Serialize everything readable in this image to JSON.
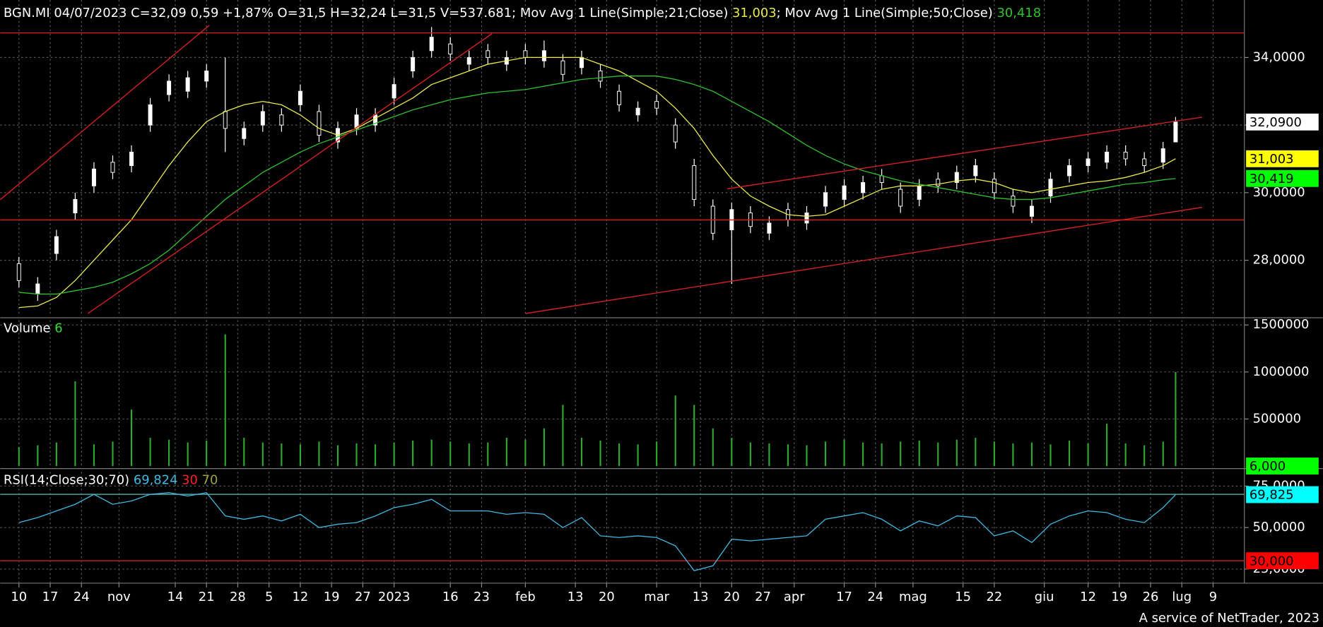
{
  "chart_data": [
    {
      "type": "candlestick",
      "title": "BGN.MI 04/07/2023 C=32,09 0,59 +1,87% O=31,5 H=32,24 L=31,5 V=537.681",
      "x": [
        0,
        3,
        6,
        9,
        12,
        15,
        18,
        21,
        24,
        27,
        30,
        33,
        36,
        39,
        42,
        45,
        48,
        51,
        54,
        57,
        60,
        63,
        66,
        69,
        72,
        75,
        78,
        81,
        84,
        87,
        90,
        93,
        96,
        99,
        102,
        105,
        108,
        111,
        114,
        117,
        120,
        123,
        126,
        129,
        132,
        135,
        138,
        141,
        144,
        147,
        150,
        153,
        156,
        159,
        162,
        165,
        168,
        171,
        174,
        177,
        180,
        183,
        185
      ],
      "open": [
        27.9,
        27.0,
        28.2,
        29.4,
        30.2,
        30.9,
        30.8,
        32.0,
        32.9,
        33.0,
        33.3,
        32.4,
        31.6,
        32.0,
        32.3,
        32.6,
        32.4,
        31.5,
        31.9,
        32.0,
        32.8,
        33.6,
        34.2,
        34.4,
        33.8,
        34.2,
        33.8,
        34.2,
        33.9,
        33.9,
        33.7,
        33.6,
        33.0,
        32.3,
        32.7,
        32.0,
        30.8,
        29.6,
        28.9,
        29.4,
        28.8,
        29.5,
        29.1,
        29.6,
        29.8,
        30.0,
        30.5,
        30.1,
        29.8,
        30.4,
        30.3,
        30.5,
        30.4,
        29.9,
        29.3,
        29.9,
        30.5,
        30.8,
        30.9,
        31.2,
        31.0,
        30.9,
        31.5
      ],
      "high": [
        28.1,
        27.5,
        28.9,
        30.0,
        30.9,
        31.1,
        31.4,
        32.8,
        33.5,
        33.6,
        33.8,
        34.0,
        32.1,
        32.6,
        32.5,
        33.2,
        32.6,
        32.1,
        32.5,
        32.5,
        33.4,
        34.2,
        34.9,
        34.6,
        34.2,
        34.4,
        34.2,
        34.4,
        34.5,
        34.1,
        34.2,
        33.8,
        33.2,
        32.7,
        32.9,
        32.2,
        31.0,
        29.8,
        29.7,
        29.6,
        29.3,
        29.7,
        29.6,
        30.2,
        30.4,
        30.5,
        30.7,
        30.3,
        30.4,
        30.6,
        30.8,
        31.0,
        30.6,
        30.1,
        29.8,
        30.6,
        31.0,
        31.2,
        31.4,
        31.4,
        31.2,
        31.5,
        32.24
      ],
      "low": [
        27.2,
        26.8,
        28.0,
        29.2,
        30.0,
        30.4,
        30.6,
        31.8,
        32.7,
        32.8,
        33.1,
        31.2,
        31.4,
        31.8,
        31.8,
        32.4,
        31.5,
        31.3,
        31.7,
        31.8,
        32.6,
        33.4,
        34.0,
        33.9,
        33.6,
        33.8,
        33.6,
        33.8,
        33.7,
        33.3,
        33.5,
        33.1,
        32.4,
        32.1,
        32.3,
        31.3,
        29.6,
        28.6,
        27.3,
        28.8,
        28.6,
        29.0,
        28.9,
        29.4,
        29.6,
        29.8,
        30.1,
        29.4,
        29.6,
        30.0,
        30.1,
        30.3,
        29.8,
        29.4,
        29.1,
        29.7,
        30.3,
        30.6,
        30.7,
        30.8,
        30.6,
        30.7,
        31.5
      ],
      "close": [
        27.4,
        27.3,
        28.7,
        29.8,
        30.7,
        30.6,
        31.2,
        32.6,
        33.3,
        33.4,
        33.6,
        31.9,
        31.9,
        32.4,
        32.0,
        33.0,
        31.7,
        31.9,
        32.3,
        32.3,
        33.2,
        34.0,
        34.6,
        34.1,
        34.0,
        34.0,
        34.0,
        34.0,
        34.2,
        33.5,
        34.0,
        33.3,
        32.6,
        32.5,
        32.5,
        31.5,
        29.8,
        28.8,
        29.5,
        29.0,
        29.1,
        29.2,
        29.4,
        30.0,
        30.2,
        30.3,
        30.3,
        29.6,
        30.2,
        30.2,
        30.6,
        30.8,
        30.0,
        29.6,
        29.6,
        30.4,
        30.8,
        31.0,
        31.2,
        31.0,
        30.8,
        31.3,
        32.09
      ],
      "up_color": "#ffffff",
      "down_color": "#000000",
      "series": [
        {
          "name": "; Mov Avg 1 Line(Simple;21;Close)",
          "color": "#e8e850",
          "last_label": "31,003",
          "values": [
            26.6,
            26.65,
            26.9,
            27.4,
            28.0,
            28.6,
            29.2,
            30.0,
            30.8,
            31.5,
            32.1,
            32.4,
            32.6,
            32.7,
            32.6,
            32.3,
            31.9,
            31.7,
            31.9,
            32.2,
            32.5,
            32.8,
            33.2,
            33.4,
            33.6,
            33.8,
            33.9,
            34.0,
            34.0,
            34.0,
            34.0,
            33.8,
            33.6,
            33.3,
            33.0,
            32.5,
            31.9,
            31.1,
            30.4,
            29.9,
            29.6,
            29.35,
            29.3,
            29.35,
            29.6,
            29.85,
            30.1,
            30.2,
            30.2,
            30.25,
            30.35,
            30.4,
            30.3,
            30.1,
            30.0,
            30.1,
            30.2,
            30.3,
            30.35,
            30.45,
            30.6,
            30.8,
            31.003
          ]
        },
        {
          "name": "; Mov Avg 1 Line(Simple;50;Close)",
          "color": "#30c030",
          "last_label": "30,418",
          "values": [
            27.05,
            27.0,
            27.0,
            27.1,
            27.2,
            27.35,
            27.6,
            27.9,
            28.3,
            28.8,
            29.3,
            29.8,
            30.2,
            30.6,
            30.9,
            31.2,
            31.45,
            31.65,
            31.85,
            32.05,
            32.25,
            32.45,
            32.6,
            32.75,
            32.85,
            32.95,
            33.0,
            33.05,
            33.15,
            33.25,
            33.35,
            33.4,
            33.45,
            33.45,
            33.45,
            33.35,
            33.2,
            33.0,
            32.7,
            32.4,
            32.1,
            31.75,
            31.4,
            31.1,
            30.85,
            30.65,
            30.5,
            30.35,
            30.25,
            30.15,
            30.05,
            29.95,
            29.85,
            29.8,
            29.8,
            29.85,
            29.95,
            30.05,
            30.15,
            30.25,
            30.3,
            30.38,
            30.418
          ]
        }
      ],
      "xlim": [
        -3,
        196
      ],
      "ylim": [
        26.35,
        35.7
      ],
      "yticks": [
        {
          "value": 28,
          "label": "28,0000"
        },
        {
          "value": 30,
          "label": "30,0000"
        },
        {
          "value": 32,
          "label": "32,0000"
        },
        {
          "value": 34,
          "label": "34,0000"
        }
      ],
      "grid": true,
      "markers": [
        {
          "value": 32.09,
          "label": "32,0900",
          "color": "#ffffff"
        },
        {
          "value": 31.003,
          "label": "31,003",
          "color": "#ffff00"
        },
        {
          "value": 30.419,
          "label": "30,419",
          "color": "#00ff00"
        }
      ]
    },
    {
      "type": "bar",
      "title": "Volume",
      "title_value": "6",
      "x": [
        0,
        3,
        6,
        9,
        12,
        15,
        18,
        21,
        24,
        27,
        30,
        33,
        36,
        39,
        42,
        45,
        48,
        51,
        54,
        57,
        60,
        63,
        66,
        69,
        72,
        75,
        78,
        81,
        84,
        87,
        90,
        93,
        96,
        99,
        102,
        105,
        108,
        111,
        114,
        117,
        120,
        123,
        126,
        129,
        132,
        135,
        138,
        141,
        144,
        147,
        150,
        153,
        156,
        159,
        162,
        165,
        168,
        171,
        174,
        177,
        180,
        183,
        185
      ],
      "values": [
        200000,
        220000,
        250000,
        900000,
        230000,
        260000,
        600000,
        300000,
        280000,
        250000,
        270000,
        1400000,
        300000,
        250000,
        240000,
        230000,
        260000,
        220000,
        240000,
        230000,
        250000,
        270000,
        280000,
        260000,
        240000,
        250000,
        300000,
        280000,
        400000,
        650000,
        300000,
        270000,
        240000,
        230000,
        260000,
        750000,
        650000,
        400000,
        300000,
        250000,
        240000,
        230000,
        220000,
        260000,
        280000,
        250000,
        240000,
        260000,
        270000,
        250000,
        280000,
        300000,
        260000,
        240000,
        250000,
        230000,
        270000,
        240000,
        450000,
        240000,
        220000,
        260000,
        1000000
      ],
      "color": "#2fa82f",
      "xlim": [
        -3,
        196
      ],
      "ylim": [
        0,
        1550000
      ],
      "yticks": [
        500000,
        1000000,
        1500000
      ],
      "grid": true,
      "markers": [
        {
          "value": 6,
          "label": "6,000",
          "color": "#00ff00"
        }
      ]
    },
    {
      "type": "line",
      "x": [
        0,
        3,
        6,
        9,
        12,
        15,
        18,
        21,
        24,
        27,
        30,
        33,
        36,
        39,
        42,
        45,
        48,
        51,
        54,
        57,
        60,
        63,
        66,
        69,
        72,
        75,
        78,
        81,
        84,
        87,
        90,
        93,
        96,
        99,
        102,
        105,
        108,
        111,
        114,
        117,
        120,
        123,
        126,
        129,
        132,
        135,
        138,
        141,
        144,
        147,
        150,
        153,
        156,
        159,
        162,
        165,
        168,
        171,
        174,
        177,
        180,
        183,
        185
      ],
      "series": [
        {
          "name": "RSI(14;Close;30;70)",
          "color": "#40b8e0",
          "last_label": "69,824",
          "values": [
            53,
            56,
            60,
            64,
            70,
            64,
            66,
            70,
            71,
            69,
            71,
            57,
            55,
            57,
            54,
            58,
            50,
            52,
            53,
            57,
            62,
            64,
            67,
            60,
            60,
            60,
            58,
            59,
            58,
            50,
            56,
            45,
            44,
            45,
            44,
            39,
            24,
            27,
            43,
            42,
            43,
            44,
            45,
            55,
            57,
            59,
            55,
            48,
            54,
            51,
            57,
            56,
            45,
            48,
            41,
            52,
            57,
            60,
            59,
            55,
            53,
            62,
            69.824
          ]
        }
      ],
      "levels": [
        {
          "value": 30,
          "label": "30",
          "color": "#ff2020",
          "line_color": "#d02020"
        },
        {
          "value": 70,
          "label": "70",
          "color": "#a0a040",
          "line_color": "#50a0a0"
        }
      ],
      "xlim": [
        -3,
        196
      ],
      "ylim": [
        16.5,
        83.5
      ],
      "yticks": [
        {
          "value": 25,
          "label": "25,0000"
        },
        {
          "value": 50,
          "label": "50,0000"
        },
        {
          "value": 75,
          "label": "75,0000"
        }
      ],
      "xticks": [
        {
          "value": 0,
          "label": "10"
        },
        {
          "value": 5,
          "label": "17"
        },
        {
          "value": 10,
          "label": "24"
        },
        {
          "value": 16,
          "label": "nov"
        },
        {
          "value": 25,
          "label": "14"
        },
        {
          "value": 30,
          "label": "21"
        },
        {
          "value": 35,
          "label": "28"
        },
        {
          "value": 40,
          "label": "5"
        },
        {
          "value": 45,
          "label": "12"
        },
        {
          "value": 50,
          "label": "19"
        },
        {
          "value": 55,
          "label": "27"
        },
        {
          "value": 60,
          "label": "2023"
        },
        {
          "value": 69,
          "label": "16"
        },
        {
          "value": 74,
          "label": "23"
        },
        {
          "value": 81,
          "label": "feb"
        },
        {
          "value": 89,
          "label": "13"
        },
        {
          "value": 94,
          "label": "20"
        },
        {
          "value": 102,
          "label": "mar"
        },
        {
          "value": 109,
          "label": "13"
        },
        {
          "value": 114,
          "label": "20"
        },
        {
          "value": 119,
          "label": "27"
        },
        {
          "value": 124,
          "label": "apr"
        },
        {
          "value": 132,
          "label": "17"
        },
        {
          "value": 137,
          "label": "24"
        },
        {
          "value": 143,
          "label": "mag"
        },
        {
          "value": 151,
          "label": "15"
        },
        {
          "value": 156,
          "label": "22"
        },
        {
          "value": 164,
          "label": "giu"
        },
        {
          "value": 171,
          "label": "12"
        },
        {
          "value": 176,
          "label": "19"
        },
        {
          "value": 181,
          "label": "26"
        },
        {
          "value": 186,
          "label": "lug"
        },
        {
          "value": 191,
          "label": "9"
        }
      ],
      "grid": true,
      "markers": [
        {
          "value": 69.825,
          "label": "69,825",
          "color": "#00ffff"
        },
        {
          "value": 30,
          "label": "30,000",
          "color": "#ff0000"
        }
      ]
    }
  ],
  "footer": "A service of NetTrader, 2023"
}
